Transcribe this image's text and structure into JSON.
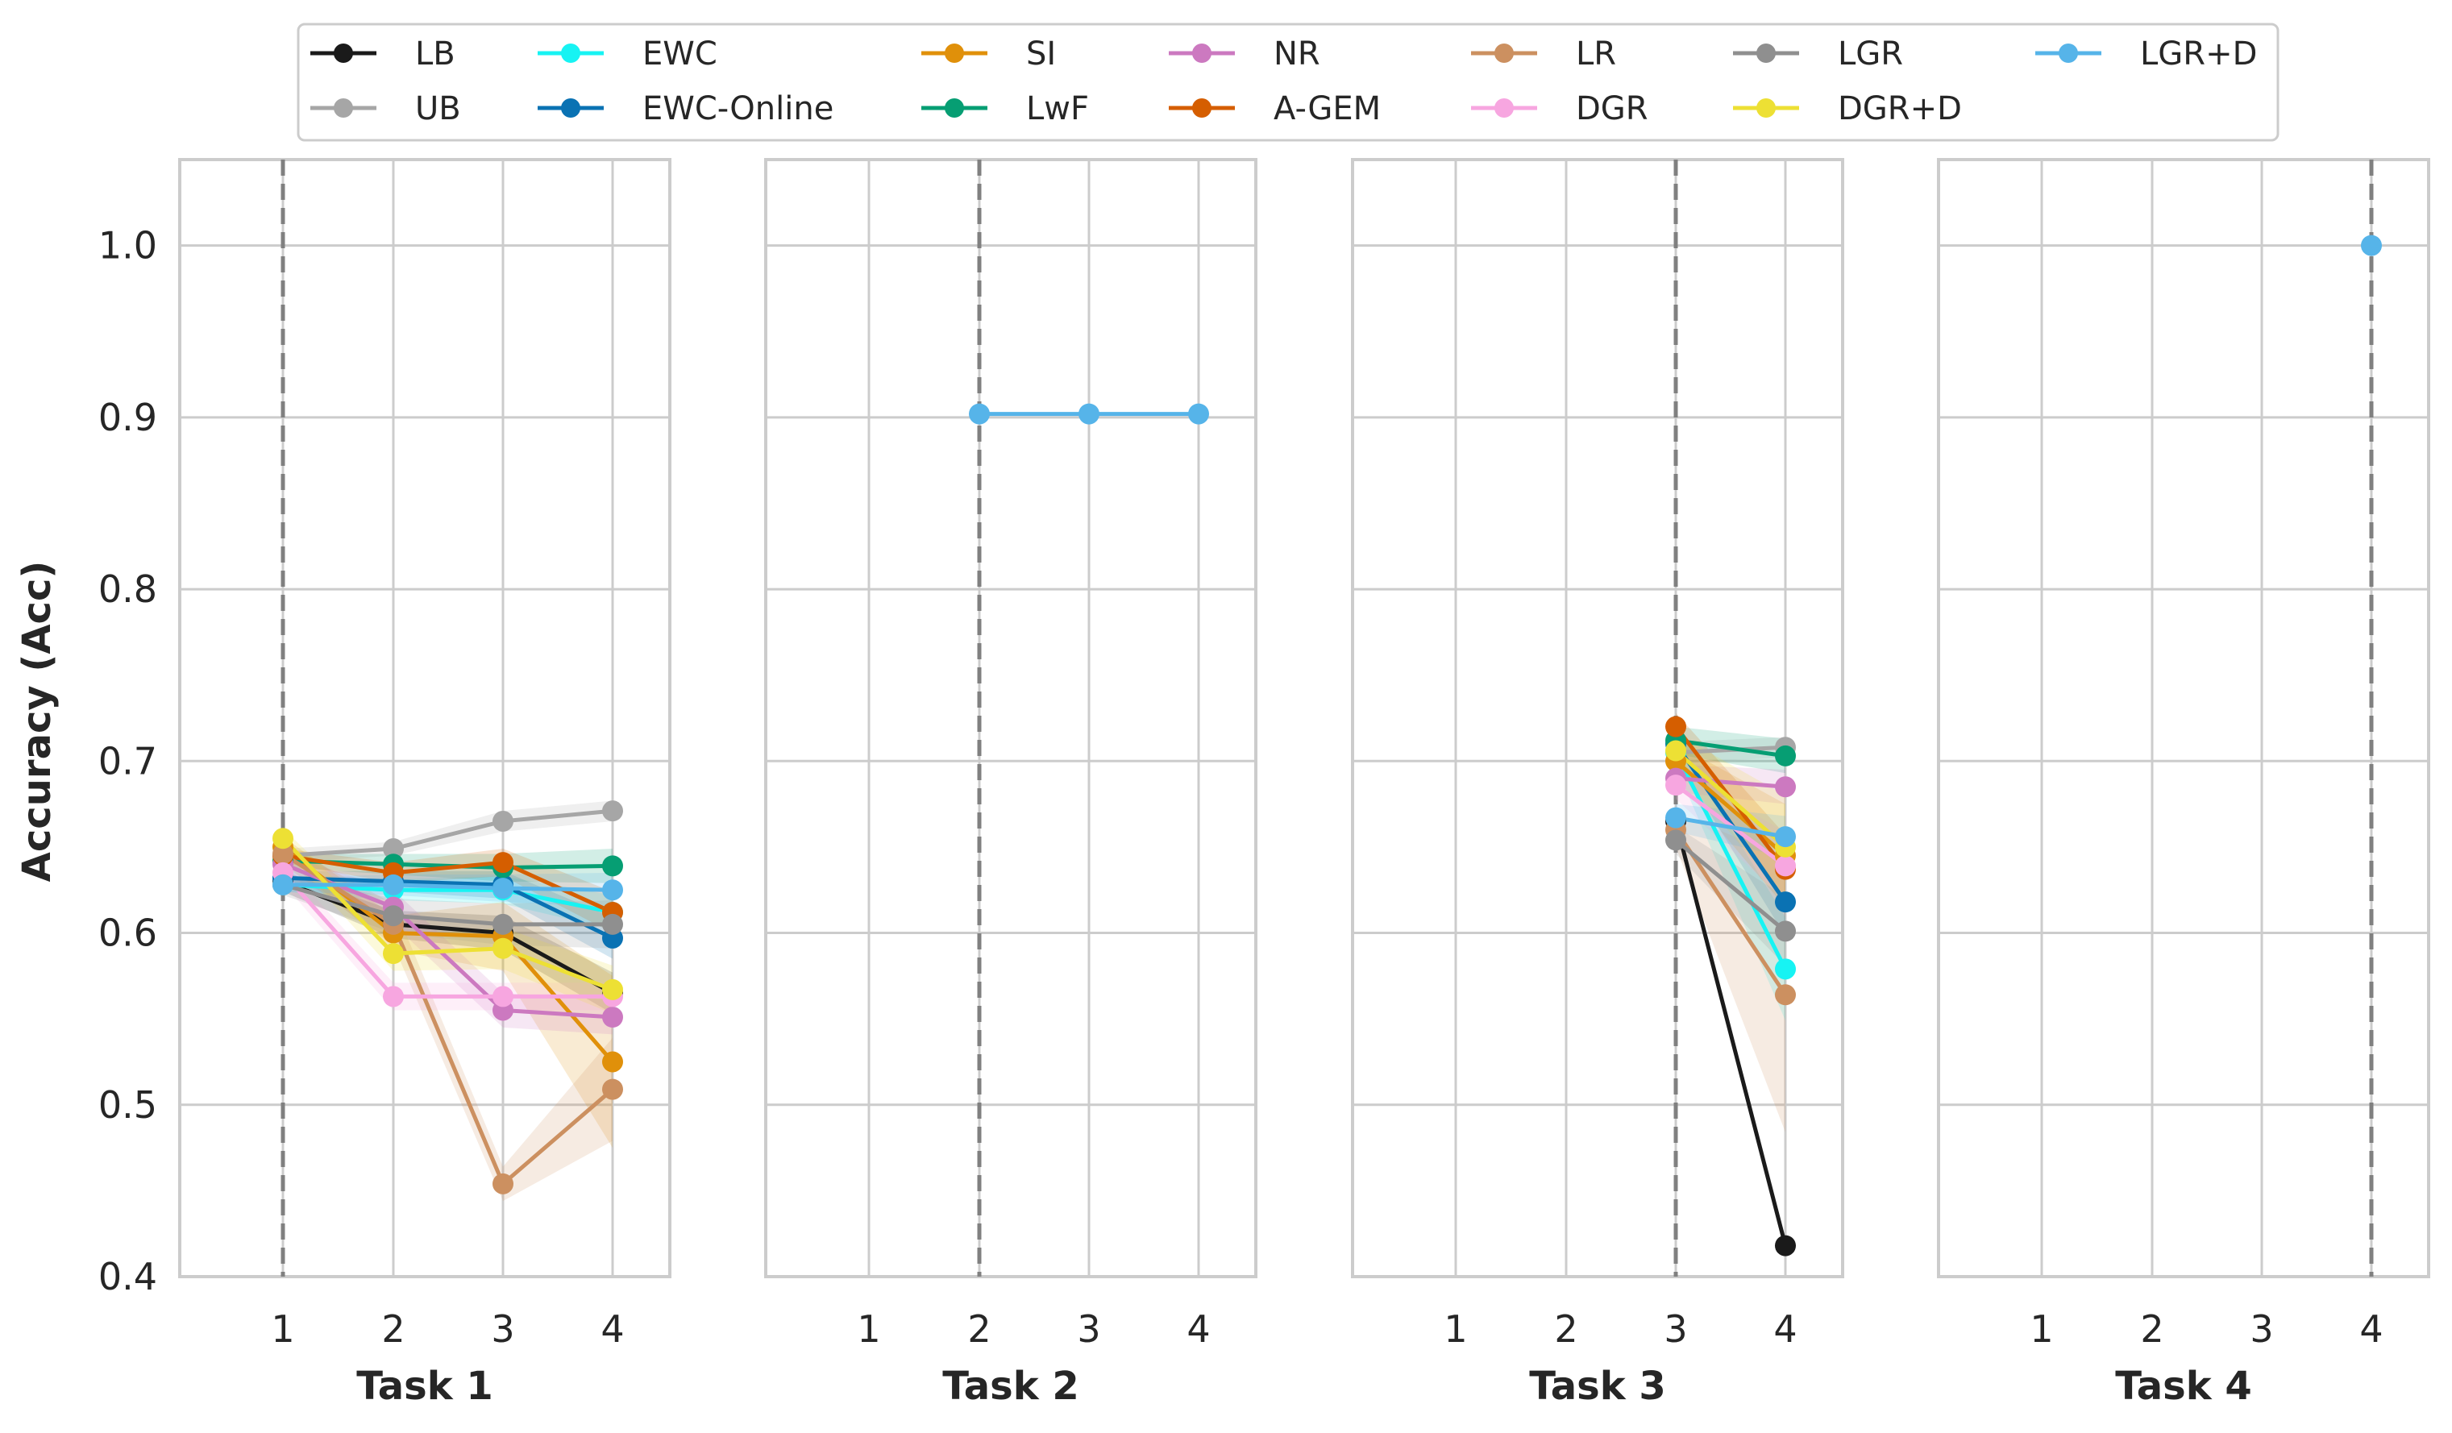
{
  "chart_data": {
    "type": "line",
    "ylabel": "Accuracy (Acc)",
    "ylim": [
      0.4,
      1.05
    ],
    "yticks": [
      0.4,
      0.5,
      0.6,
      0.7,
      0.8,
      0.9,
      1.0
    ],
    "ytick_labels": [
      "0.4",
      "0.5",
      "0.6",
      "0.7",
      "0.8",
      "0.9",
      "1.0"
    ],
    "x_categories": [
      "1",
      "2",
      "3",
      "4"
    ],
    "grid": true,
    "legend_position": "top, outside, 8 columns",
    "legend": [
      {
        "name": "LB",
        "color": "#1a1a1a"
      },
      {
        "name": "UB",
        "color": "#a6a6a6"
      },
      {
        "name": "EWC",
        "color": "#17f3f3"
      },
      {
        "name": "EWC-Online",
        "color": "#0a72b3"
      },
      {
        "name": "SI",
        "color": "#e0900a"
      },
      {
        "name": "LwF",
        "color": "#069e73"
      },
      {
        "name": "NR",
        "color": "#cc79c0"
      },
      {
        "name": "A-GEM",
        "color": "#d55e00"
      },
      {
        "name": "LR",
        "color": "#cc9060"
      },
      {
        "name": "DGR",
        "color": "#f7a6e0"
      },
      {
        "name": "LGR",
        "color": "#8f8f8f"
      },
      {
        "name": "DGR+D",
        "color": "#ede034"
      },
      {
        "name": "LGR+D",
        "color": "#56b4e9"
      }
    ],
    "panels": [
      {
        "xlabel": "Task 1",
        "task_marker": 1,
        "series": [
          {
            "name": "LB",
            "x": [
              1,
              2,
              3,
              4
            ],
            "values": [
              0.63,
              0.605,
              0.6,
              0.565
            ],
            "band": [
              0.006,
              0.008,
              0.01,
              0.012
            ]
          },
          {
            "name": "UB",
            "x": [
              1,
              2,
              3,
              4
            ],
            "values": [
              0.645,
              0.649,
              0.665,
              0.671
            ],
            "band": [
              0.004,
              0.004,
              0.006,
              0.006
            ]
          },
          {
            "name": "EWC",
            "x": [
              1,
              2,
              3,
              4
            ],
            "values": [
              0.628,
              0.625,
              0.625,
              0.612
            ],
            "band": [
              0.004,
              0.006,
              0.008,
              0.01
            ]
          },
          {
            "name": "EWC-Online",
            "x": [
              1,
              2,
              3,
              4
            ],
            "values": [
              0.632,
              0.63,
              0.628,
              0.597
            ],
            "band": [
              0.004,
              0.006,
              0.008,
              0.012
            ]
          },
          {
            "name": "SI",
            "x": [
              1,
              2,
              3,
              4
            ],
            "values": [
              0.65,
              0.6,
              0.598,
              0.525
            ],
            "band": [
              0.006,
              0.01,
              0.02,
              0.05
            ]
          },
          {
            "name": "LwF",
            "x": [
              1,
              2,
              3,
              4
            ],
            "values": [
              0.642,
              0.64,
              0.638,
              0.639
            ],
            "band": [
              0.004,
              0.006,
              0.008,
              0.01
            ]
          },
          {
            "name": "NR",
            "x": [
              1,
              2,
              3,
              4
            ],
            "values": [
              0.64,
              0.615,
              0.555,
              0.551
            ],
            "band": [
              0.006,
              0.01,
              0.01,
              0.01
            ]
          },
          {
            "name": "A-GEM",
            "x": [
              1,
              2,
              3,
              4
            ],
            "values": [
              0.645,
              0.635,
              0.641,
              0.612
            ],
            "band": [
              0.004,
              0.006,
              0.008,
              0.012
            ]
          },
          {
            "name": "LR",
            "x": [
              1,
              2,
              3,
              4
            ],
            "values": [
              0.646,
              0.605,
              0.454,
              0.509
            ],
            "band": [
              0.006,
              0.012,
              0.01,
              0.03
            ]
          },
          {
            "name": "DGR",
            "x": [
              1,
              2,
              3,
              4
            ],
            "values": [
              0.635,
              0.563,
              0.563,
              0.563
            ],
            "band": [
              0.006,
              0.008,
              0.008,
              0.008
            ]
          },
          {
            "name": "LGR",
            "x": [
              1,
              2,
              3,
              4
            ],
            "values": [
              0.628,
              0.61,
              0.605,
              0.605
            ],
            "band": [
              0.006,
              0.01,
              0.012,
              0.014
            ]
          },
          {
            "name": "DGR+D",
            "x": [
              1,
              2,
              3,
              4
            ],
            "values": [
              0.655,
              0.588,
              0.591,
              0.567
            ],
            "band": [
              0.006,
              0.01,
              0.012,
              0.014
            ]
          },
          {
            "name": "LGR+D",
            "x": [
              1,
              2,
              3,
              4
            ],
            "values": [
              0.628,
              0.628,
              0.626,
              0.625
            ],
            "band": [
              0.004,
              0.006,
              0.008,
              0.01
            ]
          }
        ]
      },
      {
        "xlabel": "Task 2",
        "task_marker": 2,
        "series": [
          {
            "name": "LGR+D",
            "x": [
              2,
              3,
              4
            ],
            "values": [
              0.902,
              0.902,
              0.902
            ],
            "band": [
              0,
              0,
              0
            ]
          }
        ]
      },
      {
        "xlabel": "Task 3",
        "task_marker": 3,
        "series": [
          {
            "name": "LB",
            "x": [
              3,
              4
            ],
            "values": [
              0.665,
              0.418
            ],
            "band": [
              0.004,
              0.004
            ]
          },
          {
            "name": "UB",
            "x": [
              3,
              4
            ],
            "values": [
              0.705,
              0.708
            ],
            "band": [
              0.006,
              0.006
            ]
          },
          {
            "name": "EWC",
            "x": [
              3,
              4
            ],
            "values": [
              0.705,
              0.579
            ],
            "band": [
              0.008,
              0.03
            ]
          },
          {
            "name": "EWC-Online",
            "x": [
              3,
              4
            ],
            "values": [
              0.71,
              0.618
            ],
            "band": [
              0.008,
              0.02
            ]
          },
          {
            "name": "SI",
            "x": [
              3,
              4
            ],
            "values": [
              0.7,
              0.645
            ],
            "band": [
              0.01,
              0.03
            ]
          },
          {
            "name": "LwF",
            "x": [
              3,
              4
            ],
            "values": [
              0.712,
              0.703
            ],
            "band": [
              0.008,
              0.01
            ]
          },
          {
            "name": "NR",
            "x": [
              3,
              4
            ],
            "values": [
              0.69,
              0.685
            ],
            "band": [
              0.008,
              0.01
            ]
          },
          {
            "name": "A-GEM",
            "x": [
              3,
              4
            ],
            "values": [
              0.72,
              0.637
            ],
            "band": [
              0.008,
              0.02
            ]
          },
          {
            "name": "LR",
            "x": [
              3,
              4
            ],
            "values": [
              0.66,
              0.564
            ],
            "band": [
              0.01,
              0.08
            ]
          },
          {
            "name": "DGR",
            "x": [
              3,
              4
            ],
            "values": [
              0.686,
              0.639
            ],
            "band": [
              0.008,
              0.02
            ]
          },
          {
            "name": "LGR",
            "x": [
              3,
              4
            ],
            "values": [
              0.654,
              0.601
            ],
            "band": [
              0.008,
              0.02
            ]
          },
          {
            "name": "DGR+D",
            "x": [
              3,
              4
            ],
            "values": [
              0.706,
              0.65
            ],
            "band": [
              0.01,
              0.03
            ]
          },
          {
            "name": "LGR+D",
            "x": [
              3,
              4
            ],
            "values": [
              0.667,
              0.656
            ],
            "band": [
              0.008,
              0.012
            ]
          }
        ]
      },
      {
        "xlabel": "Task 4",
        "task_marker": 4,
        "series": [
          {
            "name": "LGR+D",
            "x": [
              4
            ],
            "values": [
              1.0
            ],
            "band": [
              0
            ]
          }
        ]
      }
    ]
  }
}
